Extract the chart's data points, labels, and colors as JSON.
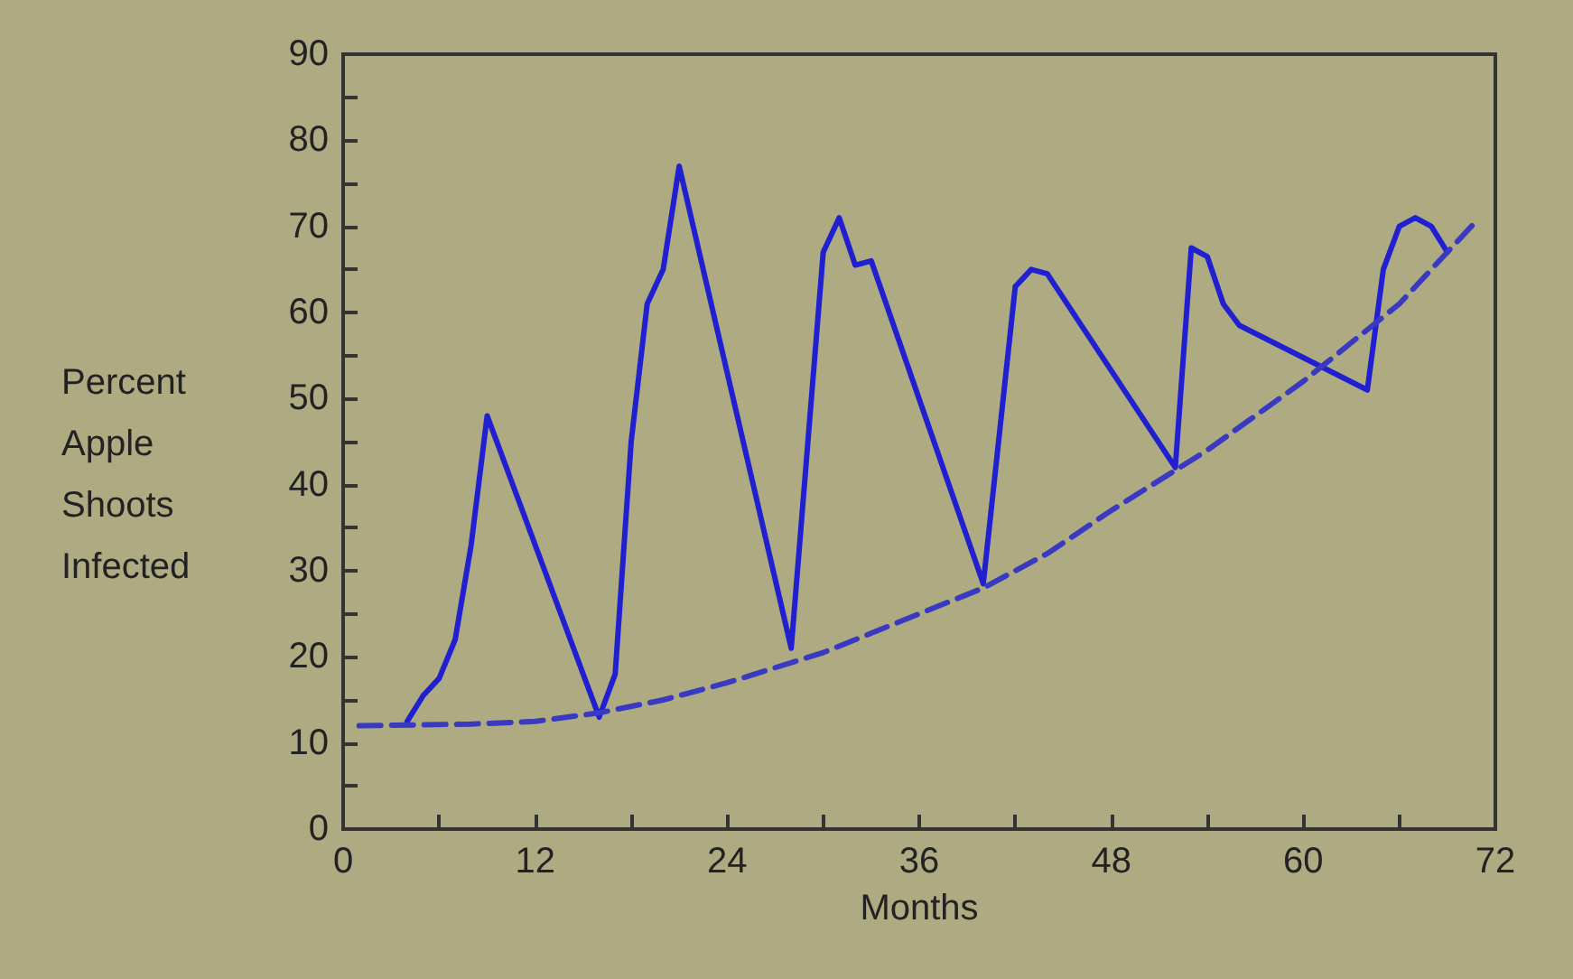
{
  "chart_data": {
    "type": "line",
    "xlabel": "Months",
    "ylabel": "Percent Apple Shoots Infected",
    "xlim": [
      0,
      72
    ],
    "xticks": [
      0,
      {
        "value": 6,
        "label": null
      },
      12,
      {
        "value": 18,
        "label": null
      },
      24,
      {
        "value": 30,
        "label": null
      },
      36,
      {
        "value": 42,
        "label": null
      },
      48,
      {
        "value": 54,
        "label": null
      },
      60,
      {
        "value": 66,
        "label": null
      },
      72
    ],
    "ylim": [
      0,
      90
    ],
    "yticks": [
      0,
      {
        "value": 5,
        "label": null
      },
      10,
      {
        "value": 15,
        "label": null
      },
      20,
      {
        "value": 25,
        "label": null
      },
      30,
      {
        "value": 35,
        "label": null
      },
      40,
      {
        "value": 45,
        "label": null
      },
      50,
      {
        "value": 55,
        "label": null
      },
      60,
      {
        "value": 65,
        "label": null
      },
      70,
      {
        "value": 75,
        "label": null
      },
      80,
      {
        "value": 85,
        "label": null
      },
      90
    ],
    "grid": false,
    "marker": "none",
    "series": [
      {
        "color": "#2020d0",
        "line_style": "solid",
        "x": [
          4,
          5,
          6,
          7,
          8,
          9,
          16,
          17,
          18,
          19,
          20,
          21,
          28,
          30,
          31,
          32,
          33,
          40,
          42,
          43,
          44,
          52,
          53,
          54,
          55,
          56,
          64,
          65,
          66,
          67,
          68,
          69
        ],
        "values": [
          12.5,
          15.5,
          17.5,
          22,
          33,
          48,
          13,
          18,
          45,
          61,
          65,
          77,
          21,
          67,
          71,
          65.5,
          66,
          28.5,
          63,
          65,
          64.5,
          42,
          67.5,
          66.5,
          61,
          58.5,
          51,
          65,
          70,
          71,
          70,
          67
        ]
      },
      {
        "color": "#3a3ac0",
        "line_style": "dashed",
        "x": [
          1,
          8,
          12,
          16,
          20,
          24,
          30,
          36,
          40,
          44,
          48,
          54,
          60,
          66,
          71
        ],
        "values": [
          12,
          12.2,
          12.5,
          13.5,
          15,
          17,
          20.5,
          25,
          28,
          32,
          37,
          44,
          52,
          61,
          71
        ]
      }
    ]
  }
}
